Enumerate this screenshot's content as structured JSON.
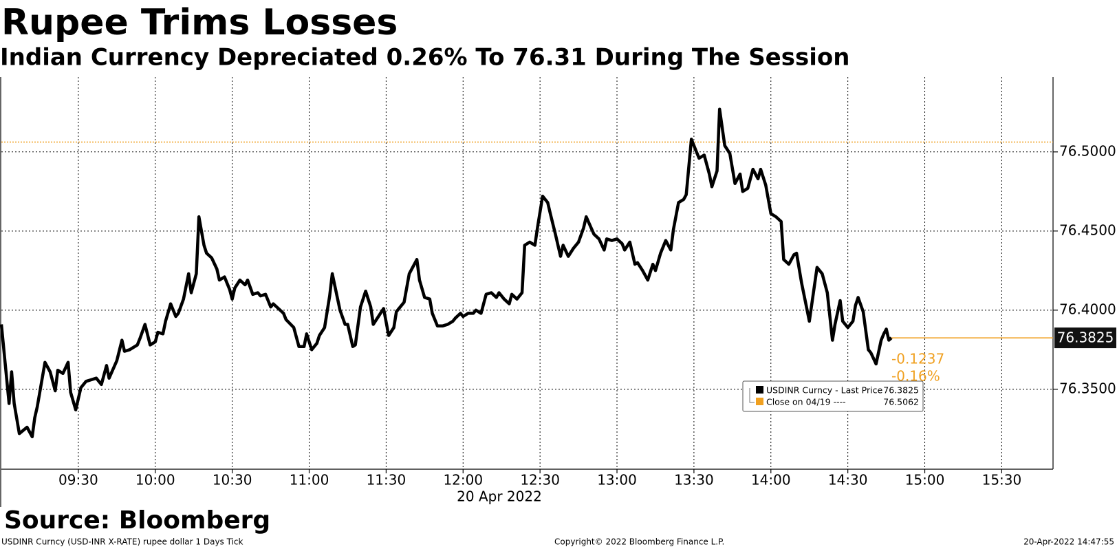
{
  "chart_data": {
    "type": "line",
    "title": "Rupee Trims Losses",
    "subtitle": "Indian Currency Depreciated 0.26% To 76.31 During The Session",
    "x_label": "20 Apr 2022",
    "source": "Source: Bloomberg",
    "footer": {
      "left": "USDINR Curncy (USD-INR X-RATE) rupee dollar 1 Days  Tick",
      "center": "Copyright© 2022 Bloomberg Finance L.P.",
      "right": "20-Apr-2022 14:47:55"
    },
    "xlim": [
      "09:00",
      "15:50"
    ],
    "xticks": [
      "09:30",
      "10:00",
      "10:30",
      "11:00",
      "11:30",
      "12:00",
      "12:30",
      "13:00",
      "13:30",
      "14:00",
      "14:30",
      "15:00",
      "15:30"
    ],
    "ylim": [
      76.2995,
      76.5473
    ],
    "yticks": [
      {
        "value": 76.35,
        "label": "76.3500"
      },
      {
        "value": 76.4,
        "label": "76.4000"
      },
      {
        "value": 76.45,
        "label": "76.4500"
      },
      {
        "value": 76.5,
        "label": "76.5000"
      }
    ],
    "grid": true,
    "x": [
      "09:00",
      "09:03",
      "09:04",
      "09:05",
      "09:07",
      "09:10",
      "09:12",
      "09:13",
      "09:14",
      "09:17",
      "09:19",
      "09:21",
      "09:22",
      "09:24",
      "09:26",
      "09:27",
      "09:29",
      "09:31",
      "09:33",
      "09:35",
      "09:37",
      "09:39",
      "09:41",
      "09:42",
      "09:45",
      "09:47",
      "09:48",
      "09:50",
      "09:53",
      "09:54",
      "09:56",
      "09:58",
      "10:00",
      "10:01",
      "10:03",
      "10:04",
      "10:06",
      "10:08",
      "10:09",
      "10:11",
      "10:13",
      "10:14",
      "10:16",
      "10:17",
      "10:19",
      "10:20",
      "10:22",
      "10:24",
      "10:25",
      "10:27",
      "10:29",
      "10:30",
      "10:31",
      "10:33",
      "10:35",
      "10:36",
      "10:38",
      "10:40",
      "10:41",
      "10:43",
      "10:45",
      "10:46",
      "10:48",
      "10:50",
      "10:51",
      "10:54",
      "10:56",
      "10:58",
      "10:59",
      "11:01",
      "11:03",
      "11:04",
      "11:06",
      "11:08",
      "11:09",
      "11:12",
      "11:14",
      "11:15",
      "11:17",
      "11:18",
      "11:20",
      "11:22",
      "11:24",
      "11:25",
      "11:27",
      "11:29",
      "11:31",
      "11:33",
      "11:34",
      "11:37",
      "11:39",
      "11:42",
      "11:43",
      "11:45",
      "11:47",
      "11:48",
      "11:50",
      "11:52",
      "11:54",
      "11:56",
      "11:57",
      "11:59",
      "12:00",
      "12:02",
      "12:04",
      "12:05",
      "12:07",
      "12:09",
      "12:11",
      "12:13",
      "12:14",
      "12:16",
      "12:18",
      "12:19",
      "12:21",
      "12:23",
      "12:24",
      "12:26",
      "12:28",
      "12:29",
      "12:31",
      "12:33",
      "12:34",
      "12:36",
      "12:38",
      "12:39",
      "12:41",
      "12:43",
      "12:45",
      "12:47",
      "12:48",
      "12:51",
      "12:53",
      "12:55",
      "12:56",
      "12:58",
      "13:00",
      "13:02",
      "13:03",
      "13:05",
      "13:07",
      "13:08",
      "13:10",
      "13:12",
      "13:14",
      "13:15",
      "13:17",
      "13:19",
      "13:21",
      "13:22",
      "13:24",
      "13:26",
      "13:27",
      "13:29",
      "13:31",
      "13:32",
      "13:34",
      "13:36",
      "13:37",
      "13:39",
      "13:40",
      "13:42",
      "13:44",
      "13:46",
      "13:48",
      "13:49",
      "13:51",
      "13:53",
      "13:55",
      "13:56",
      "13:58",
      "14:00",
      "14:02",
      "14:04",
      "14:05",
      "14:07",
      "14:09",
      "14:10",
      "14:12",
      "14:14",
      "14:15",
      "14:18",
      "14:20",
      "14:22",
      "14:24",
      "14:25",
      "14:27",
      "14:28",
      "14:30",
      "14:32",
      "14:33",
      "14:34",
      "14:36",
      "14:38",
      "14:39",
      "14:41",
      "14:43",
      "14:44",
      "14:45",
      "14:46",
      "14:47"
    ],
    "series": [
      {
        "name": "USDINR Curncy  - Last Price",
        "color": "#000000",
        "values": [
          76.391,
          76.341,
          76.361,
          76.341,
          76.322,
          76.326,
          76.32,
          76.332,
          76.339,
          76.367,
          76.361,
          76.349,
          76.362,
          76.36,
          76.367,
          76.348,
          76.337,
          76.351,
          76.355,
          76.356,
          76.357,
          76.353,
          76.365,
          76.357,
          76.368,
          76.381,
          76.374,
          76.375,
          76.378,
          76.382,
          76.391,
          76.378,
          76.38,
          76.386,
          76.385,
          76.393,
          76.404,
          76.396,
          76.398,
          76.407,
          76.423,
          76.411,
          76.423,
          76.459,
          76.441,
          76.436,
          76.433,
          76.426,
          76.419,
          76.421,
          76.413,
          76.407,
          76.414,
          76.419,
          76.416,
          76.419,
          76.41,
          76.411,
          76.409,
          76.41,
          76.402,
          76.404,
          76.401,
          76.398,
          76.394,
          76.389,
          76.377,
          76.377,
          76.385,
          76.375,
          76.379,
          76.384,
          76.389,
          76.409,
          76.423,
          76.4,
          76.391,
          76.391,
          76.377,
          76.378,
          76.402,
          76.412,
          76.402,
          76.391,
          76.396,
          76.401,
          76.384,
          76.389,
          76.399,
          76.405,
          76.423,
          76.432,
          76.419,
          76.408,
          76.407,
          76.398,
          76.39,
          76.39,
          76.391,
          76.393,
          76.395,
          76.398,
          76.396,
          76.398,
          76.398,
          76.4,
          76.398,
          76.41,
          76.411,
          76.408,
          76.411,
          76.407,
          76.404,
          76.41,
          76.407,
          76.411,
          76.441,
          76.443,
          76.441,
          76.452,
          76.472,
          76.468,
          76.461,
          76.448,
          76.434,
          76.441,
          76.434,
          76.439,
          76.443,
          76.452,
          76.459,
          76.448,
          76.445,
          76.438,
          76.445,
          76.444,
          76.445,
          76.442,
          76.438,
          76.443,
          76.429,
          76.43,
          76.425,
          76.419,
          76.429,
          76.425,
          76.436,
          76.444,
          76.438,
          76.451,
          76.468,
          76.47,
          76.473,
          76.508,
          76.5,
          76.496,
          76.498,
          76.486,
          76.478,
          76.488,
          76.527,
          76.504,
          76.499,
          76.48,
          76.486,
          76.475,
          76.477,
          76.489,
          76.483,
          76.489,
          76.479,
          76.461,
          76.459,
          76.456,
          76.432,
          76.429,
          76.435,
          76.436,
          76.417,
          76.401,
          76.393,
          76.427,
          76.423,
          76.411,
          76.381,
          76.391,
          76.406,
          76.393,
          76.389,
          76.393,
          76.403,
          76.408,
          76.399,
          76.375,
          76.373,
          76.366,
          76.381,
          76.385,
          76.388,
          76.381,
          76.3825
        ]
      }
    ],
    "reference_line": {
      "name": "Close on 04/19 ----",
      "value": 76.5062,
      "color": "#f0a020"
    },
    "change": -0.1237,
    "change_pct": {
      "value": -0.16,
      "label": "-0.16%"
    }
  }
}
